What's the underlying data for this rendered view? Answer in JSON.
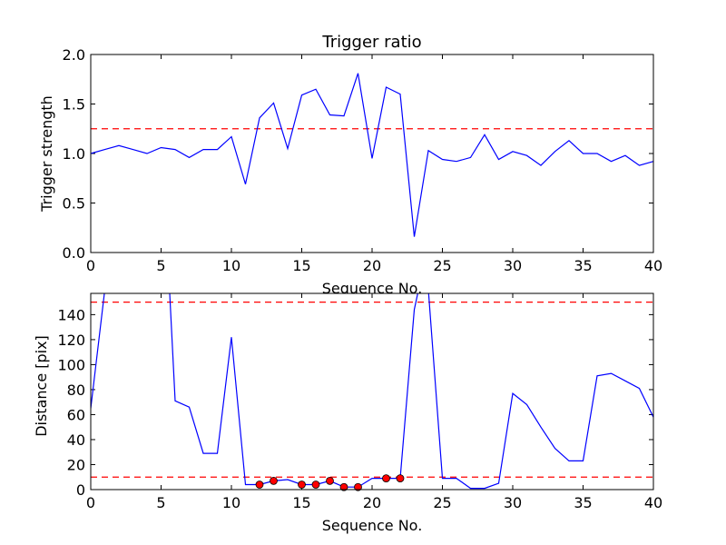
{
  "chart_data": [
    {
      "type": "line",
      "title": "Trigger ratio",
      "xlabel": "Sequence No.",
      "ylabel": "Trigger strength",
      "xlim": [
        0,
        40
      ],
      "ylim": [
        0,
        2.0
      ],
      "xticks": [
        0,
        5,
        10,
        15,
        20,
        25,
        30,
        35,
        40
      ],
      "yticks": [
        0.0,
        0.5,
        1.0,
        1.5,
        2.0
      ],
      "ytick_labels": [
        "0.0",
        "0.5",
        "1.0",
        "1.5",
        "2.0"
      ],
      "series": [
        {
          "color": "#0000ff",
          "x": [
            0,
            1,
            2,
            3,
            4,
            5,
            6,
            7,
            8,
            9,
            10,
            11,
            12,
            13,
            14,
            15,
            16,
            17,
            18,
            19,
            20,
            21,
            22,
            23,
            24,
            25,
            26,
            27,
            28,
            29,
            30,
            31,
            32,
            33,
            34,
            35,
            36,
            37,
            38,
            39,
            40
          ],
          "y": [
            1.0,
            1.04,
            1.08,
            1.04,
            1.0,
            1.06,
            1.04,
            0.96,
            1.04,
            1.04,
            1.17,
            0.69,
            1.36,
            1.51,
            1.05,
            1.59,
            1.65,
            1.39,
            1.38,
            1.81,
            0.95,
            1.67,
            1.6,
            0.16,
            1.03,
            0.94,
            0.92,
            0.96,
            1.19,
            0.94,
            1.02,
            0.98,
            0.88,
            1.02,
            1.13,
            1.0,
            1.0,
            0.92,
            0.98,
            0.88,
            0.92
          ]
        }
      ],
      "reference_lines": [
        {
          "y": 1.25,
          "color": "#ff0000",
          "style": "dashed"
        }
      ]
    },
    {
      "type": "line",
      "title": "",
      "xlabel": "Sequence No.",
      "ylabel": "Distance [pix]",
      "xlim": [
        0,
        40
      ],
      "ylim": [
        0,
        157
      ],
      "xticks": [
        0,
        5,
        10,
        15,
        20,
        25,
        30,
        35,
        40
      ],
      "yticks": [
        0,
        20,
        40,
        60,
        80,
        100,
        120,
        140
      ],
      "ytick_labels": [
        "0",
        "20",
        "40",
        "60",
        "80",
        "100",
        "120",
        "140"
      ],
      "series": [
        {
          "color": "#0000ff",
          "x": [
            0,
            1,
            5.6,
            6,
            7,
            8,
            9,
            10,
            11,
            12,
            13,
            14,
            15,
            16,
            17,
            18,
            19,
            20,
            21,
            22,
            23,
            23.3,
            24,
            25,
            26,
            27,
            28,
            29,
            30,
            31,
            32,
            33,
            34,
            35,
            36,
            37,
            38,
            39,
            40
          ],
          "y": [
            65,
            160,
            160,
            71,
            66,
            29,
            29,
            122,
            4,
            4,
            7,
            8,
            4,
            4,
            7,
            2,
            2,
            9,
            9,
            9,
            144,
            160,
            160,
            9,
            9,
            1,
            1,
            5,
            77,
            68,
            50,
            33,
            23,
            23,
            91,
            93,
            87,
            81,
            58
          ]
        }
      ],
      "markers": {
        "color": "#ff0000",
        "x": [
          12,
          13,
          15,
          16,
          17,
          18,
          19,
          21,
          22
        ],
        "y": [
          4,
          7,
          4,
          4,
          7,
          2,
          2,
          9,
          9
        ]
      },
      "reference_lines": [
        {
          "y": 150,
          "color": "#ff0000",
          "style": "dashed"
        },
        {
          "y": 10,
          "color": "#ff0000",
          "style": "dashed"
        }
      ]
    }
  ]
}
